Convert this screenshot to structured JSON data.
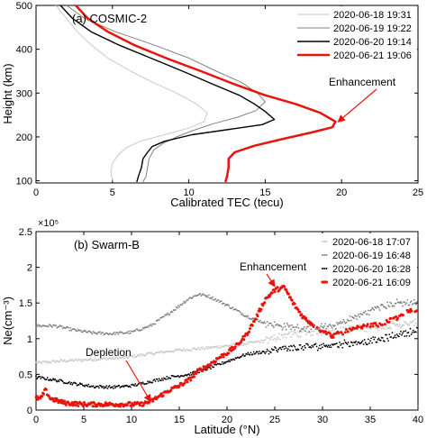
{
  "chart_data": [
    {
      "type": "line",
      "panel_label": "(a) COSMIC-2",
      "xlabel": "Calibrated TEC (tecu)",
      "ylabel": "Height (km)",
      "xlim": [
        0,
        25
      ],
      "ylim": [
        95,
        500
      ],
      "xticks": [
        "0",
        "5",
        "10",
        "15",
        "20",
        "25"
      ],
      "yticks": [
        "100",
        "200",
        "300",
        "400",
        "500"
      ],
      "legend_position": "top-right",
      "annotation": {
        "text": "Enhancement",
        "color": "#e8140c",
        "points_to": [
          19.7,
          228
        ]
      },
      "series": [
        {
          "name": "2020-06-18 19:31",
          "color": "#c8c8c8",
          "width": 1,
          "points": [
            [
              1.3,
              500
            ],
            [
              2.0,
              470
            ],
            [
              2.7,
              440
            ],
            [
              3.6,
              410
            ],
            [
              4.7,
              380
            ],
            [
              6.2,
              350
            ],
            [
              7.6,
              325
            ],
            [
              9.2,
              300
            ],
            [
              10.5,
              275
            ],
            [
              11.2,
              255
            ],
            [
              11.0,
              235
            ],
            [
              10.0,
              220
            ],
            [
              8.4,
              205
            ],
            [
              6.8,
              190
            ],
            [
              5.9,
              175
            ],
            [
              5.4,
              160
            ],
            [
              5.0,
              140
            ],
            [
              4.9,
              120
            ],
            [
              5.0,
              100
            ]
          ]
        },
        {
          "name": "2020-06-19 19:22",
          "color": "#808080",
          "width": 1,
          "points": [
            [
              2.0,
              500
            ],
            [
              3.2,
              470
            ],
            [
              5.2,
              440
            ],
            [
              7.7,
              410
            ],
            [
              10.0,
              380
            ],
            [
              11.8,
              350
            ],
            [
              13.4,
              325
            ],
            [
              14.5,
              300
            ],
            [
              15.0,
              280
            ],
            [
              14.4,
              260
            ],
            [
              13.2,
              245
            ],
            [
              11.6,
              230
            ],
            [
              10.3,
              215
            ],
            [
              9.2,
              200
            ],
            [
              8.3,
              185
            ],
            [
              7.7,
              170
            ],
            [
              7.4,
              150
            ],
            [
              7.3,
              130
            ],
            [
              7.2,
              110
            ],
            [
              7.0,
              97
            ]
          ]
        },
        {
          "name": "2020-06-20 19:14",
          "color": "#000000",
          "width": 1.4,
          "points": [
            [
              1.6,
              500
            ],
            [
              2.4,
              470
            ],
            [
              3.6,
              440
            ],
            [
              5.4,
              410
            ],
            [
              7.5,
              380
            ],
            [
              9.6,
              350
            ],
            [
              11.6,
              320
            ],
            [
              13.3,
              295
            ],
            [
              14.3,
              275
            ],
            [
              15.0,
              258
            ],
            [
              15.6,
              240
            ],
            [
              14.8,
              228
            ],
            [
              12.8,
              218
            ],
            [
              10.2,
              205
            ],
            [
              8.4,
              190
            ],
            [
              7.6,
              178
            ],
            [
              7.3,
              165
            ],
            [
              7.0,
              150
            ],
            [
              6.9,
              130
            ],
            [
              6.7,
              110
            ],
            [
              6.6,
              97
            ]
          ]
        },
        {
          "name": "2020-06-21 19:06",
          "color": "#e8140c",
          "width": 2.5,
          "points": [
            [
              2.6,
              500
            ],
            [
              3.4,
              470
            ],
            [
              4.7,
              440
            ],
            [
              6.4,
              410
            ],
            [
              8.5,
              380
            ],
            [
              10.8,
              350
            ],
            [
              13.0,
              320
            ],
            [
              15.0,
              295
            ],
            [
              17.0,
              275
            ],
            [
              18.6,
              255
            ],
            [
              19.6,
              235
            ],
            [
              19.4,
              222
            ],
            [
              18.0,
              210
            ],
            [
              16.1,
              195
            ],
            [
              14.3,
              180
            ],
            [
              13.0,
              165
            ],
            [
              12.6,
              150
            ],
            [
              12.6,
              130
            ],
            [
              12.5,
              110
            ],
            [
              12.4,
              97
            ]
          ]
        }
      ]
    },
    {
      "type": "scatter",
      "panel_label": "(b) Swarm-B",
      "xlabel": "Latitude (°N)",
      "ylabel": "Ne(cm⁻³)",
      "y_multiplier": "×10⁵",
      "xlim": [
        0,
        40
      ],
      "ylim": [
        0,
        2.5
      ],
      "xticks": [
        "0",
        "5",
        "10",
        "15",
        "20",
        "25",
        "30",
        "35",
        "40"
      ],
      "yticks": [
        "0",
        "0.5",
        "1",
        "1.5",
        "2",
        "2.5"
      ],
      "legend_position": "top-right",
      "annotations": [
        {
          "text": "Enhancement",
          "color": "#e8140c",
          "points_to": [
            25.0,
            1.73
          ]
        },
        {
          "text": "Depletion",
          "color": "#e8140c",
          "points_to": [
            12.0,
            0.12
          ]
        }
      ],
      "series": [
        {
          "name": "2020-06-18 17:07",
          "color": "#c8c8c8",
          "points": [
            [
              0,
              0.66
            ],
            [
              3,
              0.69
            ],
            [
              6,
              0.71
            ],
            [
              9,
              0.73
            ],
            [
              12,
              0.79
            ],
            [
              15,
              0.84
            ],
            [
              18,
              0.87
            ],
            [
              20,
              0.9
            ],
            [
              22,
              0.93
            ],
            [
              24,
              0.97
            ],
            [
              26,
              1.05
            ],
            [
              28,
              1.08
            ],
            [
              30,
              1.1
            ],
            [
              33,
              1.13
            ],
            [
              36,
              1.17
            ],
            [
              38,
              1.19
            ],
            [
              40,
              1.22
            ]
          ]
        },
        {
          "name": "2020-06-19 16:48",
          "color": "#808080",
          "points": [
            [
              0,
              1.18
            ],
            [
              2,
              1.18
            ],
            [
              4,
              1.12
            ],
            [
              6,
              1.08
            ],
            [
              8,
              1.07
            ],
            [
              10,
              1.09
            ],
            [
              12,
              1.18
            ],
            [
              14,
              1.36
            ],
            [
              16,
              1.56
            ],
            [
              17,
              1.62
            ],
            [
              18,
              1.6
            ],
            [
              20,
              1.47
            ],
            [
              22,
              1.32
            ],
            [
              24,
              1.22
            ],
            [
              26,
              1.17
            ],
            [
              28,
              1.15
            ],
            [
              31,
              1.17
            ],
            [
              34,
              1.33
            ],
            [
              36,
              1.45
            ],
            [
              38,
              1.5
            ],
            [
              40,
              1.5
            ]
          ]
        },
        {
          "name": "2020-06-20 16:28",
          "color": "#000000",
          "points": [
            [
              0,
              0.46
            ],
            [
              2,
              0.42
            ],
            [
              4,
              0.37
            ],
            [
              6,
              0.33
            ],
            [
              8,
              0.32
            ],
            [
              10,
              0.34
            ],
            [
              12,
              0.4
            ],
            [
              14,
              0.46
            ],
            [
              16,
              0.5
            ],
            [
              18,
              0.58
            ],
            [
              20,
              0.68
            ],
            [
              22,
              0.78
            ],
            [
              24,
              0.82
            ],
            [
              26,
              0.86
            ],
            [
              28,
              0.88
            ],
            [
              30,
              0.9
            ],
            [
              33,
              0.94
            ],
            [
              36,
              0.98
            ],
            [
              38,
              1.06
            ],
            [
              40,
              1.12
            ]
          ]
        },
        {
          "name": "2020-06-21 16:09",
          "color": "#e8140c",
          "points": [
            [
              0,
              0.17
            ],
            [
              0.5,
              0.16
            ],
            [
              1,
              0.28
            ],
            [
              1.5,
              0.16
            ],
            [
              3,
              0.1
            ],
            [
              5,
              0.08
            ],
            [
              7,
              0.08
            ],
            [
              9,
              0.08
            ],
            [
              11,
              0.08
            ],
            [
              12,
              0.12
            ],
            [
              13,
              0.2
            ],
            [
              14,
              0.28
            ],
            [
              15,
              0.34
            ],
            [
              16,
              0.42
            ],
            [
              17,
              0.55
            ],
            [
              18,
              0.62
            ],
            [
              19,
              0.72
            ],
            [
              20,
              0.8
            ],
            [
              21,
              0.9
            ],
            [
              22,
              1.05
            ],
            [
              23,
              1.28
            ],
            [
              24,
              1.55
            ],
            [
              25,
              1.68
            ],
            [
              26,
              1.72
            ],
            [
              27,
              1.48
            ],
            [
              28,
              1.3
            ],
            [
              29,
              1.2
            ],
            [
              30,
              1.1
            ],
            [
              31,
              1.04
            ],
            [
              32,
              1.08
            ],
            [
              33,
              1.12
            ],
            [
              34,
              1.16
            ],
            [
              35,
              1.18
            ],
            [
              36,
              1.2
            ],
            [
              37,
              1.25
            ],
            [
              38,
              1.3
            ],
            [
              39,
              1.38
            ],
            [
              40,
              1.42
            ]
          ]
        }
      ]
    }
  ]
}
